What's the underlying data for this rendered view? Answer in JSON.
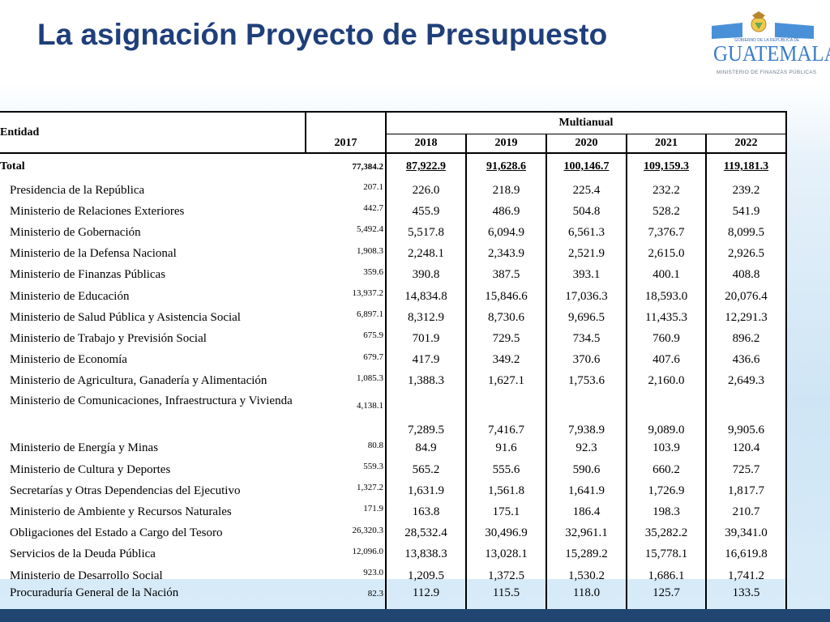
{
  "title": "La asignación Proyecto de Presupuesto",
  "logo": {
    "top_text": "GOBIERNO DE LA REPÚBLICA DE",
    "name": "GUATEMALA",
    "bottom_text": "MINISTERIO DE FINANZAS PÚBLICAS"
  },
  "table": {
    "entity_header": "Entidad",
    "group_header": "Multianual",
    "years": [
      "2017",
      "2018",
      "2019",
      "2020",
      "2021",
      "2022"
    ],
    "total": {
      "label": "Total",
      "values": [
        "77,384.2",
        "87,922.9",
        "91,628.6",
        "100,146.7",
        "109,159.3",
        "119,181.3"
      ]
    },
    "rows": [
      {
        "name": "Presidencia de la República",
        "values": [
          "207.1",
          "226.0",
          "218.9",
          "225.4",
          "232.2",
          "239.2"
        ]
      },
      {
        "name": "Ministerio de Relaciones Exteriores",
        "values": [
          "442.7",
          "455.9",
          "486.9",
          "504.8",
          "528.2",
          "541.9"
        ]
      },
      {
        "name": "Ministerio de Gobernación",
        "values": [
          "5,492.4",
          "5,517.8",
          "6,094.9",
          "6,561.3",
          "7,376.7",
          "8,099.5"
        ]
      },
      {
        "name": "Ministerio de la Defensa Nacional",
        "values": [
          "1,908.3",
          "2,248.1",
          "2,343.9",
          "2,521.9",
          "2,615.0",
          "2,926.5"
        ]
      },
      {
        "name": "Ministerio de Finanzas Públicas",
        "values": [
          "359.6",
          "390.8",
          "387.5",
          "393.1",
          "400.1",
          "408.8"
        ]
      },
      {
        "name": "Ministerio de Educación",
        "values": [
          "13,937.2",
          "14,834.8",
          "15,846.6",
          "17,036.3",
          "18,593.0",
          "20,076.4"
        ]
      },
      {
        "name": "Ministerio de Salud Pública y Asistencia Social",
        "values": [
          "6,897.1",
          "8,312.9",
          "8,730.6",
          "9,696.5",
          "11,435.3",
          "12,291.3"
        ]
      },
      {
        "name": "Ministerio de Trabajo y Previsión Social",
        "values": [
          "675.9",
          "701.9",
          "729.5",
          "734.5",
          "760.9",
          "896.2"
        ]
      },
      {
        "name": "Ministerio de Economía",
        "values": [
          "679.7",
          "417.9",
          "349.2",
          "370.6",
          "407.6",
          "436.6"
        ]
      },
      {
        "name": "Ministerio de Agricultura, Ganadería y Alimentación",
        "values": [
          "1,085.3",
          "1,388.3",
          "1,627.1",
          "1,753.6",
          "2,160.0",
          "2,649.3"
        ]
      },
      {
        "name": "Ministerio de Comunicaciones, Infraestructura y Vivienda",
        "values": [
          "4,138.1",
          "7,289.5",
          "7,416.7",
          "7,938.9",
          "9,089.0",
          "9,905.6"
        ]
      },
      {
        "name": "Ministerio de Energía y Minas",
        "values": [
          "80.8",
          "84.9",
          "91.6",
          "92.3",
          "103.9",
          "120.4"
        ]
      },
      {
        "name": "Ministerio de Cultura y Deportes",
        "values": [
          "559.3",
          "565.2",
          "555.6",
          "590.6",
          "660.2",
          "725.7"
        ]
      },
      {
        "name": "Secretarías y Otras Dependencias del Ejecutivo",
        "values": [
          "1,327.2",
          "1,631.9",
          "1,561.8",
          "1,641.9",
          "1,726.9",
          "1,817.7"
        ]
      },
      {
        "name": "Ministerio de Ambiente y Recursos Naturales",
        "values": [
          "171.9",
          "163.8",
          "175.1",
          "186.4",
          "198.3",
          "210.7"
        ]
      },
      {
        "name": "Obligaciones del Estado a Cargo del Tesoro",
        "values": [
          "26,320.3",
          "28,532.4",
          "30,496.9",
          "32,961.1",
          "35,282.2",
          "39,341.0"
        ]
      },
      {
        "name": "Servicios de la Deuda Pública",
        "values": [
          "12,096.0",
          "13,838.3",
          "13,028.1",
          "15,289.2",
          "15,778.1",
          "16,619.8"
        ]
      },
      {
        "name": "Ministerio de Desarrollo Social",
        "values": [
          "923.0",
          "1,209.5",
          "1,372.5",
          "1,530.2",
          "1,686.1",
          "1,741.2"
        ]
      },
      {
        "name": "Procuraduría General de la Nación",
        "values": [
          "82.3",
          "112.9",
          "115.5",
          "118.0",
          "125.7",
          "133.5"
        ]
      }
    ]
  }
}
